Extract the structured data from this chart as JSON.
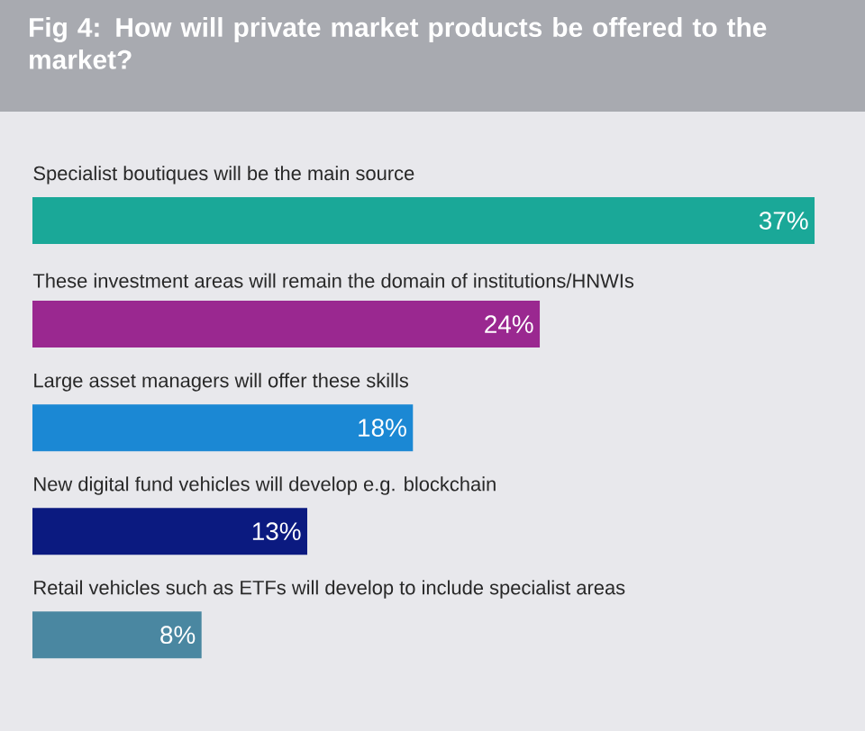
{
  "chart_data": {
    "type": "bar",
    "orientation": "horizontal",
    "title": "Fig 4: How will private market products be offered to the market?",
    "categories": [
      "Specialist boutiques will be the main source",
      "These investment areas will remain the domain of institutions/HNWIs",
      "Large asset managers will offer these skills",
      "New digital fund vehicles will develop e.g. blockchain",
      "Retail vehicles such as ETFs will develop to include specialist areas"
    ],
    "values": [
      37,
      24,
      18,
      13,
      8
    ],
    "value_labels": [
      "37%",
      "24%",
      "18%",
      "13%",
      "8%"
    ],
    "colors": [
      "#1aa898",
      "#9a2890",
      "#1b88d4",
      "#0b1a80",
      "#4a87a1"
    ]
  }
}
